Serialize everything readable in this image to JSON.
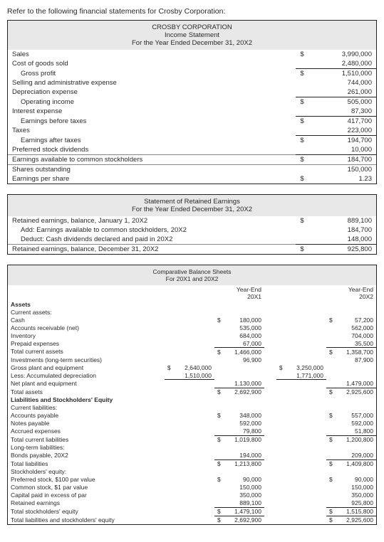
{
  "intro": "Refer to the following financial statements for Crosby Corporation:",
  "income": {
    "company": "CROSBY CORPORATION",
    "title": "Income Statement",
    "period": "For the Year Ended December 31, 20X2",
    "rows": [
      {
        "label": "Sales",
        "dol": "$",
        "val": "3,990,000",
        "indent": 0
      },
      {
        "label": "Cost of goods sold",
        "val": "2,480,000",
        "indent": 0,
        "ub": true
      },
      {
        "label": "Gross profit",
        "dol": "$",
        "val": "1,510,000",
        "indent": 1,
        "ut": true
      },
      {
        "label": "Selling and administrative expense",
        "val": "744,000",
        "indent": 0
      },
      {
        "label": "Depreciation expense",
        "val": "261,000",
        "indent": 0,
        "ub": true
      },
      {
        "label": "Operating income",
        "dol": "$",
        "val": "505,000",
        "indent": 1,
        "ut": true
      },
      {
        "label": "Interest expense",
        "val": "87,300",
        "indent": 0,
        "ub": true
      },
      {
        "label": "Earnings before taxes",
        "dol": "$",
        "val": "417,700",
        "indent": 1,
        "ut": true
      },
      {
        "label": "Taxes",
        "val": "223,000",
        "indent": 0,
        "ub": true
      },
      {
        "label": "Earnings after taxes",
        "dol": "$",
        "val": "194,700",
        "indent": 1,
        "ut": true
      },
      {
        "label": "Preferred stock dividends",
        "val": "10,000",
        "indent": 0,
        "ub": true
      }
    ],
    "eacs": {
      "label": "Earnings available to common stockholders",
      "dol": "$",
      "val": "184,700"
    },
    "shares": {
      "label": "Shares outstanding",
      "val": "150,000"
    },
    "eps": {
      "label": "Earnings per share",
      "dol": "$",
      "val": "1.23"
    }
  },
  "retained": {
    "title": "Statement of Retained Earnings",
    "period": "For the Year Ended December 31, 20X2",
    "rows": [
      {
        "label": "Retained earnings, balance, January 1, 20X2",
        "dol": "$",
        "val": "889,100",
        "indent": 0
      },
      {
        "label": "Add: Earnings available to common stockholders, 20X2",
        "val": "184,700",
        "indent": 1
      },
      {
        "label": "Deduct: Cash dividends declared and paid in 20X2",
        "val": "148,000",
        "indent": 1,
        "ub": true
      }
    ],
    "final": {
      "label": "Retained earnings, balance, December 31, 20X2",
      "dol": "$",
      "val": "925,800"
    }
  },
  "balance": {
    "title": "Comparative Balance Sheets",
    "period": "For 20X1 and 20X2",
    "col1": "Year-End\n20X1",
    "col2": "Year-End\n20X2",
    "sections": [
      {
        "h": "Assets",
        "rows": [
          {
            "label": "Current assets:",
            "kind": "sub"
          },
          {
            "label": "Cash",
            "i": 1,
            "c2d": "$",
            "c2": "180,000",
            "c4d": "$",
            "c4": "57,200"
          },
          {
            "label": "Accounts receivable (net)",
            "i": 1,
            "c2": "535,000",
            "c4": "562,000"
          },
          {
            "label": "Inventory",
            "i": 1,
            "c2": "684,000",
            "c4": "704,000"
          },
          {
            "label": "Prepaid expenses",
            "i": 1,
            "c2": "67,000",
            "c4": "35,500",
            "ub24": true
          },
          {
            "label": "Total current assets",
            "c2d": "$",
            "c2": "1,466,000",
            "c4d": "$",
            "c4": "1,358,700"
          },
          {
            "label": "Investments (long-term securities)",
            "c2": "96,900",
            "c4": "87,900"
          },
          {
            "label": "Gross plant and equipment",
            "i": 1,
            "c1d": "$",
            "c1": "2,640,000",
            "c3d": "$",
            "c3": "3,250,000"
          },
          {
            "label": "Less: Accumulated depreciation",
            "i": 1,
            "c1": "1,510,000",
            "c3": "1,771,000",
            "ub13": true
          },
          {
            "label": "Net plant and equipment",
            "i": 1,
            "c2": "1,130,000",
            "c4": "1,479,000",
            "ub24": true
          },
          {
            "label": "Total assets",
            "c2d": "$",
            "c2": "2,692,900",
            "c4d": "$",
            "c4": "2,925,600",
            "ut24": true
          }
        ]
      },
      {
        "h": "Liabilities and Stockholders' Equity",
        "rows": [
          {
            "label": "Current liabilities:",
            "kind": "sub"
          },
          {
            "label": "Accounts payable",
            "i": 1,
            "c2d": "$",
            "c2": "348,000",
            "c4d": "$",
            "c4": "557,000"
          },
          {
            "label": "Notes payable",
            "i": 1,
            "c2": "592,000",
            "c4": "592,000"
          },
          {
            "label": "Accrued expenses",
            "i": 1,
            "c2": "79,800",
            "c4": "51,800",
            "ub24": true
          },
          {
            "label": "Total current liabilities",
            "i": 1,
            "c2d": "$",
            "c2": "1,019,800",
            "c4d": "$",
            "c4": "1,200,800"
          },
          {
            "label": "Long-term liabilities:",
            "kind": "sub"
          },
          {
            "label": "Bonds payable, 20X2",
            "i": 1,
            "c2": "194,000",
            "c4": "209,000",
            "ub24": true
          },
          {
            "label": "Total liabilities",
            "i": 1,
            "c2d": "$",
            "c2": "1,213,800",
            "c4d": "$",
            "c4": "1,409,800"
          },
          {
            "label": "Stockholders' equity:",
            "kind": "sub"
          },
          {
            "label": "Preferred stock, $100 par value",
            "i": 1,
            "c2d": "$",
            "c2": "90,000",
            "c4d": "$",
            "c4": "90,000"
          },
          {
            "label": "Common stock, $1 par value",
            "i": 1,
            "c2": "150,000",
            "c4": "150,000"
          },
          {
            "label": "Capital paid in excess of par",
            "i": 1,
            "c2": "350,000",
            "c4": "350,000"
          },
          {
            "label": "Retained earnings",
            "i": 1,
            "c2": "889,100",
            "c4": "925,800",
            "ub24": true
          },
          {
            "label": "Total stockholders' equity",
            "i": 1,
            "c2d": "$",
            "c2": "1,479,100",
            "c4d": "$",
            "c4": "1,515,800",
            "ub24": true
          },
          {
            "label": "Total liabilities and stockholders' equity",
            "c2d": "$",
            "c2": "2,692,900",
            "c4d": "$",
            "c4": "2,925,600",
            "ut24": true
          }
        ]
      }
    ]
  }
}
